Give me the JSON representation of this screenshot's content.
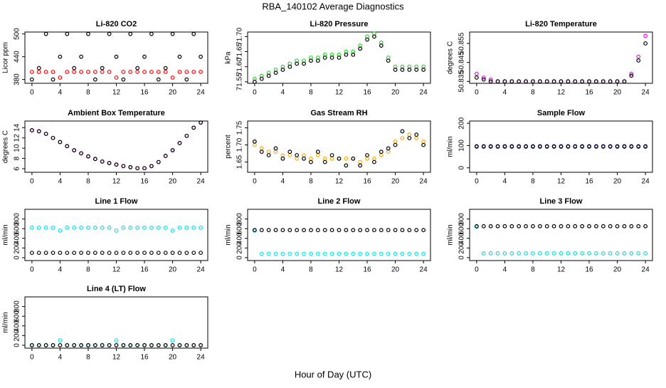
{
  "title": "RBA_140102  Average Diagnostics",
  "xlabel": "Hour of Day (UTC)",
  "chart_data": [
    {
      "type": "scatter",
      "title": "Li-820 CO2",
      "ylabel": "Licor ppm",
      "xlim": [
        -1,
        25
      ],
      "xticks": [
        0,
        4,
        8,
        12,
        16,
        20,
        24
      ],
      "ylim": [
        370,
        505
      ],
      "yticks": [
        380,
        440,
        500
      ],
      "x": [
        0,
        1,
        2,
        3,
        4,
        5,
        6,
        7,
        8,
        9,
        10,
        11,
        12,
        13,
        14,
        15,
        16,
        17,
        18,
        19,
        20,
        21,
        22,
        23,
        24
      ],
      "series": [
        {
          "color": "#000000",
          "values": [
            380,
            410,
            500,
            380,
            440,
            500,
            410,
            440,
            500,
            380,
            410,
            500,
            440,
            380,
            500,
            410,
            440,
            500,
            380,
            410,
            500,
            440,
            380,
            500,
            440
          ]
        },
        {
          "color": "#ff0000",
          "values": [
            400,
            400,
            400,
            400,
            385,
            400,
            400,
            400,
            400,
            400,
            400,
            400,
            385,
            400,
            400,
            400,
            400,
            400,
            400,
            400,
            385,
            400,
            400,
            400,
            400
          ]
        }
      ]
    },
    {
      "type": "scatter",
      "title": "Li-820 Pressure",
      "ylabel": "kPa",
      "xlim": [
        -1,
        25
      ],
      "xticks": [
        0,
        4,
        8,
        12,
        16,
        20,
        24
      ],
      "ylim": [
        71.545,
        71.715
      ],
      "yticks": [
        71.55,
        {
          "value": 71.6,
          "label": "71.60"
        },
        71.65,
        {
          "value": 71.7,
          "label": "71.70"
        }
      ],
      "x": [
        0,
        1,
        2,
        3,
        4,
        5,
        6,
        7,
        8,
        9,
        10,
        11,
        12,
        13,
        14,
        15,
        16,
        17,
        18,
        19,
        20,
        21,
        22,
        23,
        24
      ],
      "series": [
        {
          "color": "#22dd22",
          "values": [
            71.56,
            71.57,
            71.58,
            71.59,
            71.6,
            71.61,
            71.62,
            71.62,
            71.63,
            71.63,
            71.64,
            71.64,
            71.64,
            71.65,
            71.65,
            71.67,
            71.7,
            71.71,
            71.68,
            71.63,
            71.6,
            71.6,
            71.6,
            71.6,
            71.6
          ]
        },
        {
          "color": "#000000",
          "values": [
            71.55,
            71.56,
            71.57,
            71.58,
            71.59,
            71.6,
            71.61,
            71.61,
            71.62,
            71.62,
            71.63,
            71.63,
            71.63,
            71.64,
            71.64,
            71.66,
            71.69,
            71.7,
            71.67,
            71.62,
            71.59,
            71.59,
            71.59,
            71.59,
            71.59
          ]
        }
      ]
    },
    {
      "type": "scatter",
      "title": "Li-820 Temperature",
      "ylabel": "degrees C",
      "xlim": [
        -1,
        25
      ],
      "xticks": [
        0,
        4,
        8,
        12,
        16,
        20,
        24
      ],
      "ylim": [
        50.834,
        50.861
      ],
      "yticks": [
        50.835,
        50.845,
        50.855
      ],
      "x": [
        0,
        1,
        2,
        3,
        4,
        5,
        6,
        7,
        8,
        9,
        10,
        11,
        12,
        13,
        14,
        15,
        16,
        17,
        18,
        19,
        20,
        21,
        22,
        23,
        24
      ],
      "series": [
        {
          "color": "#ff00ff",
          "values": [
            50.839,
            50.837,
            50.836,
            50.835,
            50.835,
            50.835,
            50.835,
            50.835,
            50.835,
            50.835,
            50.835,
            50.835,
            50.835,
            50.835,
            50.835,
            50.835,
            50.835,
            50.835,
            50.835,
            50.835,
            50.835,
            50.835,
            50.839,
            50.848,
            50.859
          ]
        },
        {
          "color": "#000000",
          "values": [
            50.837,
            50.836,
            50.835,
            50.835,
            50.835,
            50.835,
            50.835,
            50.835,
            50.835,
            50.835,
            50.835,
            50.835,
            50.835,
            50.835,
            50.835,
            50.835,
            50.835,
            50.835,
            50.835,
            50.835,
            50.835,
            50.835,
            50.838,
            50.846,
            50.855
          ]
        }
      ]
    },
    {
      "type": "scatter",
      "title": "Ambient Box Temperature",
      "ylabel": "degrees C",
      "xlim": [
        -1,
        25
      ],
      "xticks": [
        0,
        4,
        8,
        12,
        16,
        20,
        24
      ],
      "ylim": [
        5.3,
        15.3
      ],
      "yticks": [
        6,
        8,
        10,
        12,
        14
      ],
      "x": [
        0,
        1,
        2,
        3,
        4,
        5,
        6,
        7,
        8,
        9,
        10,
        11,
        12,
        13,
        14,
        15,
        16,
        17,
        18,
        19,
        20,
        21,
        22,
        23,
        24
      ],
      "series": [
        {
          "color": "#ff00ff",
          "values": [
            13.5,
            13.3,
            12.8,
            12,
            11.2,
            10.4,
            9.6,
            9,
            8.4,
            7.9,
            7.4,
            7.1,
            6.8,
            6.5,
            6.3,
            6.1,
            6.1,
            6.5,
            7.3,
            8.5,
            9.6,
            11,
            12.4,
            14,
            15
          ]
        },
        {
          "color": "#000000",
          "values": [
            13.5,
            13.3,
            12.8,
            12,
            11.2,
            10.4,
            9.6,
            9,
            8.4,
            7.9,
            7.4,
            7.1,
            6.8,
            6.5,
            6.3,
            6.1,
            6.1,
            6.5,
            7.3,
            8.5,
            9.6,
            11,
            12.4,
            14,
            15
          ]
        }
      ]
    },
    {
      "type": "scatter",
      "title": "Gas Stream RH",
      "ylabel": "percent",
      "xlim": [
        -1,
        25
      ],
      "xticks": [
        0,
        4,
        8,
        12,
        16,
        20,
        24
      ],
      "ylim": [
        1.62,
        1.77
      ],
      "yticks": [
        1.65,
        {
          "value": 1.7,
          "label": "1.70"
        },
        1.75
      ],
      "x": [
        0,
        1,
        2,
        3,
        4,
        5,
        6,
        7,
        8,
        9,
        10,
        11,
        12,
        13,
        14,
        15,
        16,
        17,
        18,
        19,
        20,
        21,
        22,
        23,
        24
      ],
      "series": [
        {
          "color": "#ffaa00",
          "values": [
            1.7,
            1.69,
            1.68,
            1.68,
            1.67,
            1.67,
            1.66,
            1.67,
            1.66,
            1.67,
            1.66,
            1.66,
            1.66,
            1.66,
            1.66,
            1.65,
            1.66,
            1.66,
            1.67,
            1.68,
            1.71,
            1.72,
            1.73,
            1.72,
            1.71
          ]
        },
        {
          "color": "#000000",
          "values": [
            1.71,
            1.68,
            1.67,
            1.69,
            1.66,
            1.68,
            1.67,
            1.66,
            1.65,
            1.68,
            1.65,
            1.67,
            1.66,
            1.64,
            1.66,
            1.64,
            1.67,
            1.65,
            1.68,
            1.69,
            1.7,
            1.74,
            1.72,
            1.73,
            1.7
          ]
        }
      ]
    },
    {
      "type": "scatter",
      "title": "Sample Flow",
      "ylabel": "ml/min",
      "xlim": [
        -1,
        25
      ],
      "xticks": [
        0,
        4,
        8,
        12,
        16,
        20,
        24
      ],
      "ylim": [
        -20,
        210
      ],
      "yticks": [
        0,
        100,
        200
      ],
      "x": [
        0,
        1,
        2,
        3,
        4,
        5,
        6,
        7,
        8,
        9,
        10,
        11,
        12,
        13,
        14,
        15,
        16,
        17,
        18,
        19,
        20,
        21,
        22,
        23,
        24
      ],
      "series": [
        {
          "color": "#0000cc",
          "values": [
            97,
            97,
            97,
            97,
            97,
            97,
            97,
            97,
            97,
            97,
            97,
            97,
            97,
            97,
            97,
            97,
            97,
            97,
            97,
            97,
            97,
            97,
            97,
            97,
            97
          ]
        },
        {
          "color": "#000000",
          "values": [
            95,
            95,
            95,
            95,
            95,
            95,
            95,
            95,
            95,
            95,
            95,
            95,
            95,
            95,
            95,
            95,
            95,
            95,
            95,
            95,
            95,
            95,
            95,
            95,
            95
          ]
        }
      ]
    },
    {
      "type": "scatter",
      "title": "Line 1 Flow",
      "ylabel": "ml/min",
      "xlim": [
        -1,
        25
      ],
      "xticks": [
        0,
        4,
        8,
        12,
        16,
        20,
        24
      ],
      "ylim": [
        -60,
        1000
      ],
      "yticks": [
        0,
        200,
        400,
        600,
        800
      ],
      "x": [
        0,
        1,
        2,
        3,
        4,
        5,
        6,
        7,
        8,
        9,
        10,
        11,
        12,
        13,
        14,
        15,
        16,
        17,
        18,
        19,
        20,
        21,
        22,
        23,
        24
      ],
      "series": [
        {
          "color": "#00e5ee",
          "values": [
            620,
            620,
            620,
            620,
            560,
            620,
            620,
            620,
            620,
            620,
            620,
            620,
            560,
            620,
            620,
            620,
            620,
            620,
            620,
            620,
            560,
            620,
            620,
            620,
            620
          ]
        },
        {
          "color": "#000000",
          "values": [
            100,
            100,
            100,
            100,
            100,
            100,
            100,
            100,
            100,
            100,
            100,
            100,
            100,
            100,
            100,
            100,
            100,
            100,
            100,
            100,
            100,
            100,
            100,
            100,
            100
          ]
        }
      ]
    },
    {
      "type": "scatter",
      "title": "Line 2 Flow",
      "ylabel": "ml/min",
      "xlim": [
        -1,
        25
      ],
      "xticks": [
        0,
        4,
        8,
        12,
        16,
        20,
        24
      ],
      "ylim": [
        -60,
        1000
      ],
      "yticks": [
        0,
        200,
        400,
        600,
        800
      ],
      "x": [
        0,
        1,
        2,
        3,
        4,
        5,
        6,
        7,
        8,
        9,
        10,
        11,
        12,
        13,
        14,
        15,
        16,
        17,
        18,
        19,
        20,
        21,
        22,
        23,
        24
      ],
      "series": [
        {
          "color": "#00e5ee",
          "values": [
            560,
            80,
            80,
            80,
            80,
            80,
            80,
            80,
            80,
            80,
            80,
            80,
            80,
            80,
            80,
            80,
            80,
            80,
            80,
            80,
            80,
            80,
            80,
            80,
            80
          ]
        },
        {
          "color": "#000000",
          "values": [
            570,
            570,
            570,
            570,
            570,
            570,
            570,
            570,
            570,
            570,
            570,
            570,
            570,
            570,
            570,
            570,
            570,
            570,
            570,
            570,
            570,
            570,
            570,
            570,
            570
          ]
        }
      ]
    },
    {
      "type": "scatter",
      "title": "Line 3 Flow",
      "ylabel": "ml/min",
      "xlim": [
        -1,
        25
      ],
      "xticks": [
        0,
        4,
        8,
        12,
        16,
        20,
        24
      ],
      "ylim": [
        -60,
        1000
      ],
      "yticks": [
        0,
        200,
        400,
        600,
        800
      ],
      "x": [
        0,
        1,
        2,
        3,
        4,
        5,
        6,
        7,
        8,
        9,
        10,
        11,
        12,
        13,
        14,
        15,
        16,
        17,
        18,
        19,
        20,
        21,
        22,
        23,
        24
      ],
      "series": [
        {
          "color": "#00e5ee",
          "values": [
            640,
            90,
            90,
            90,
            90,
            90,
            90,
            90,
            90,
            90,
            90,
            90,
            90,
            90,
            90,
            90,
            90,
            90,
            90,
            90,
            90,
            90,
            90,
            90,
            90
          ]
        },
        {
          "color": "#000000",
          "values": [
            650,
            650,
            650,
            650,
            650,
            650,
            650,
            650,
            650,
            650,
            650,
            650,
            650,
            650,
            650,
            650,
            650,
            650,
            650,
            650,
            650,
            650,
            650,
            650,
            650
          ]
        }
      ]
    },
    {
      "type": "scatter",
      "title": "Line 4 (LT) Flow",
      "ylabel": "ml/min",
      "xlim": [
        -1,
        25
      ],
      "xticks": [
        0,
        4,
        8,
        12,
        16,
        20,
        24
      ],
      "ylim": [
        -60,
        1000
      ],
      "yticks": [
        0,
        200,
        400,
        600,
        800
      ],
      "x": [
        0,
        1,
        2,
        3,
        4,
        5,
        6,
        7,
        8,
        9,
        10,
        11,
        12,
        13,
        14,
        15,
        16,
        17,
        18,
        19,
        20,
        21,
        22,
        23,
        24
      ],
      "series": [
        {
          "color": "#00e5ee",
          "values": [
            0,
            0,
            0,
            0,
            100,
            0,
            0,
            0,
            0,
            0,
            0,
            0,
            100,
            0,
            0,
            0,
            0,
            0,
            0,
            0,
            100,
            0,
            0,
            0,
            0
          ]
        },
        {
          "color": "#000000",
          "values": [
            0,
            0,
            0,
            0,
            0,
            0,
            0,
            0,
            0,
            0,
            0,
            0,
            0,
            0,
            0,
            0,
            0,
            0,
            0,
            0,
            0,
            0,
            0,
            0,
            0
          ]
        }
      ]
    }
  ]
}
